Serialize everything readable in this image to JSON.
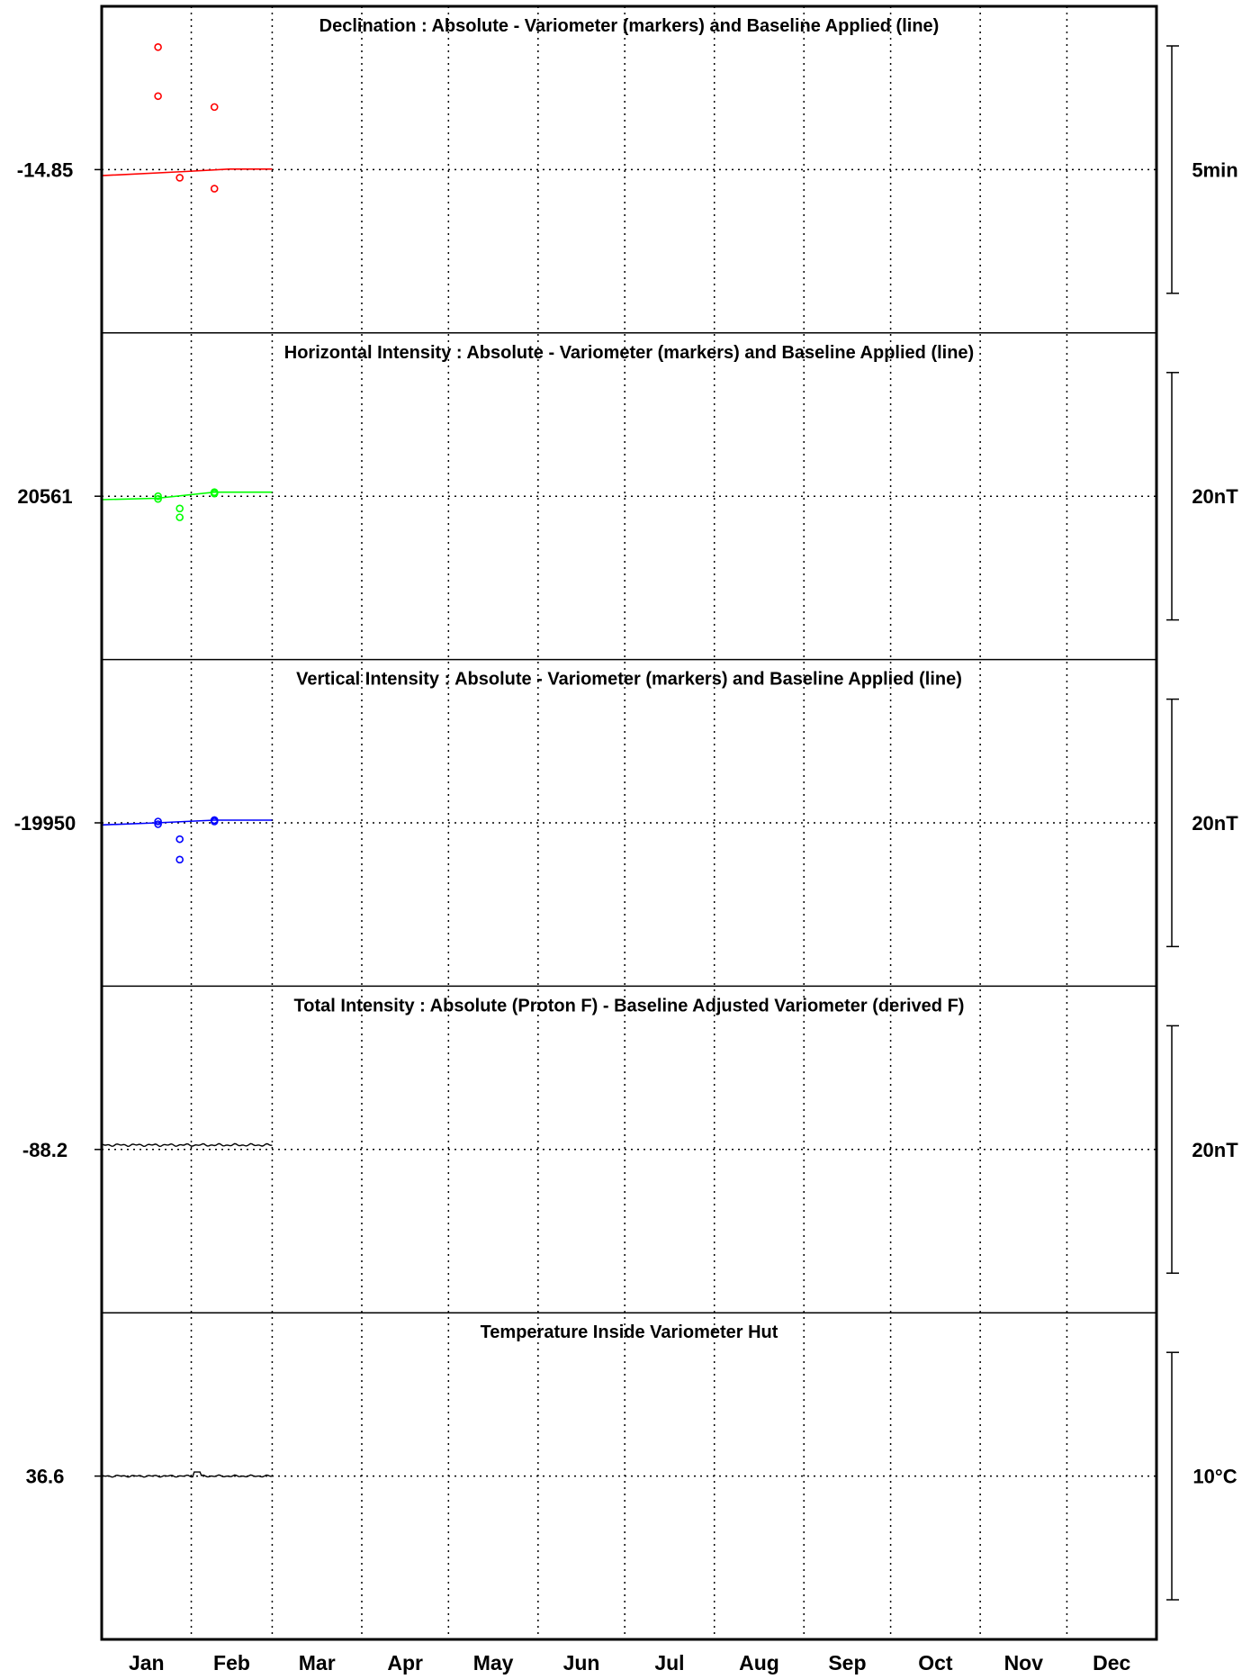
{
  "chart_data": {
    "type": "line",
    "x_months": [
      "Jan",
      "Feb",
      "Mar",
      "Apr",
      "May",
      "Jun",
      "Jul",
      "Aug",
      "Sep",
      "Oct",
      "Nov",
      "Dec"
    ],
    "grid": true,
    "panels": [
      {
        "title": "Declination : Absolute - Variometer (markers) and Baseline Applied (line)",
        "ref_label": "-14.85",
        "scale_label": "5min",
        "color": "#ff0000",
        "range": [
          -20.85,
          -8.85
        ],
        "line": [
          [
            1,
            -15.07
          ],
          [
            30,
            -14.92
          ],
          [
            45,
            -14.83
          ],
          [
            60,
            -14.83
          ]
        ],
        "markers": [
          [
            20.5,
            -10.35
          ],
          [
            20.5,
            -12.15
          ],
          [
            28,
            -15.15
          ],
          [
            40,
            -12.55
          ],
          [
            40,
            -15.55
          ]
        ]
      },
      {
        "title": "Horizontal Intensity : Absolute - Variometer (markers) and Baseline Applied (line)",
        "ref_label": "20561",
        "scale_label": "20nT",
        "color": "#00ff00",
        "range": [
          20537,
          20585
        ],
        "line": [
          [
            1,
            20560.5
          ],
          [
            20,
            20560.7
          ],
          [
            40,
            20561.6
          ],
          [
            60,
            20561.6
          ]
        ],
        "markers": [
          [
            20.5,
            20561.0
          ],
          [
            20.5,
            20560.6
          ],
          [
            28,
            20559.2
          ],
          [
            28,
            20557.9
          ],
          [
            40,
            20561.4
          ],
          [
            40,
            20561.6
          ]
        ]
      },
      {
        "title": "Vertical Intensity : Absolute - Variometer (markers) and Baseline Applied (line)",
        "ref_label": "-19950",
        "scale_label": "20nT",
        "color": "#0000ff",
        "range": [
          -19974,
          -19926
        ],
        "line": [
          [
            1,
            -19950.3
          ],
          [
            20,
            -19950.0
          ],
          [
            40,
            -19949.6
          ],
          [
            60,
            -19949.6
          ]
        ],
        "markers": [
          [
            20.5,
            -19949.8
          ],
          [
            20.5,
            -19950.2
          ],
          [
            28,
            -19952.4
          ],
          [
            28,
            -19955.4
          ],
          [
            40,
            -19949.6
          ],
          [
            40,
            -19949.8
          ]
        ]
      },
      {
        "title": "Total Intensity : Absolute (Proton F) - Baseline Adjusted Variometer (derived F)",
        "ref_label": "-88.2",
        "scale_label": "20nT",
        "color": "#000000",
        "range": [
          -112.2,
          -64.2
        ],
        "noisy_line": {
          "x_start": 1,
          "x_end": 60,
          "y": -87.55,
          "amp": 0.2
        }
      },
      {
        "title": "Temperature Inside Variometer Hut",
        "ref_label": "36.6",
        "scale_label": "10°C",
        "color": "#000000",
        "range": [
          30.6,
          42.6
        ],
        "noisy_line": {
          "x_start": 1,
          "x_end": 60,
          "y": 36.6,
          "amp": 0.04,
          "bump_x": 34,
          "bump_y": 36.75
        }
      }
    ]
  }
}
